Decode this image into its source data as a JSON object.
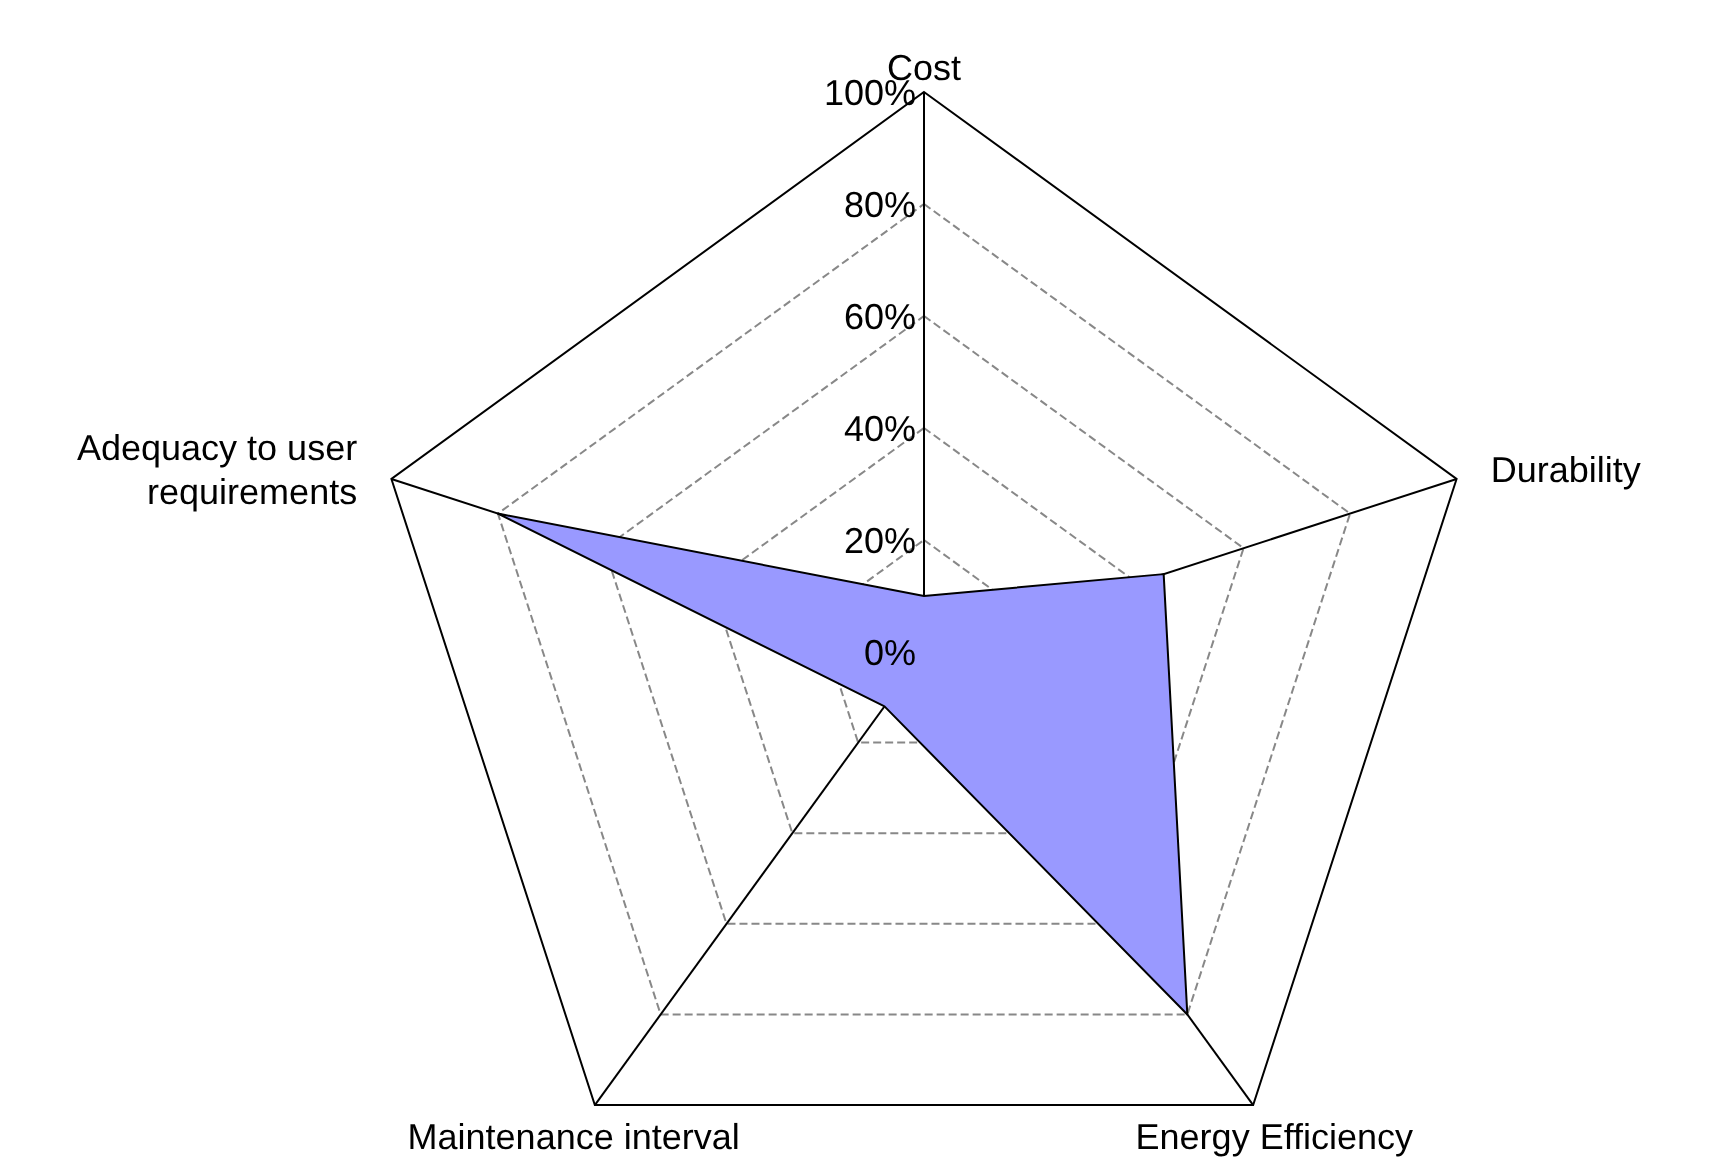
{
  "chart_data": {
    "type": "radar",
    "categories": [
      "Cost",
      "Durability",
      "Energy Efficiency",
      "Maintenance interval",
      "Adequacy to user requirements"
    ],
    "series": [
      {
        "color": "#9999ff",
        "values": [
          10,
          45,
          80,
          12,
          80
        ]
      }
    ],
    "ylim": [
      0,
      100
    ],
    "yticks": [
      {
        "value": 0,
        "label": "0%"
      },
      {
        "value": 20,
        "label": "20%"
      },
      {
        "value": 40,
        "label": "40%"
      },
      {
        "value": 60,
        "label": "60%"
      },
      {
        "value": 80,
        "label": "80%"
      },
      {
        "value": 100,
        "label": "100%"
      }
    ],
    "grid": true
  }
}
